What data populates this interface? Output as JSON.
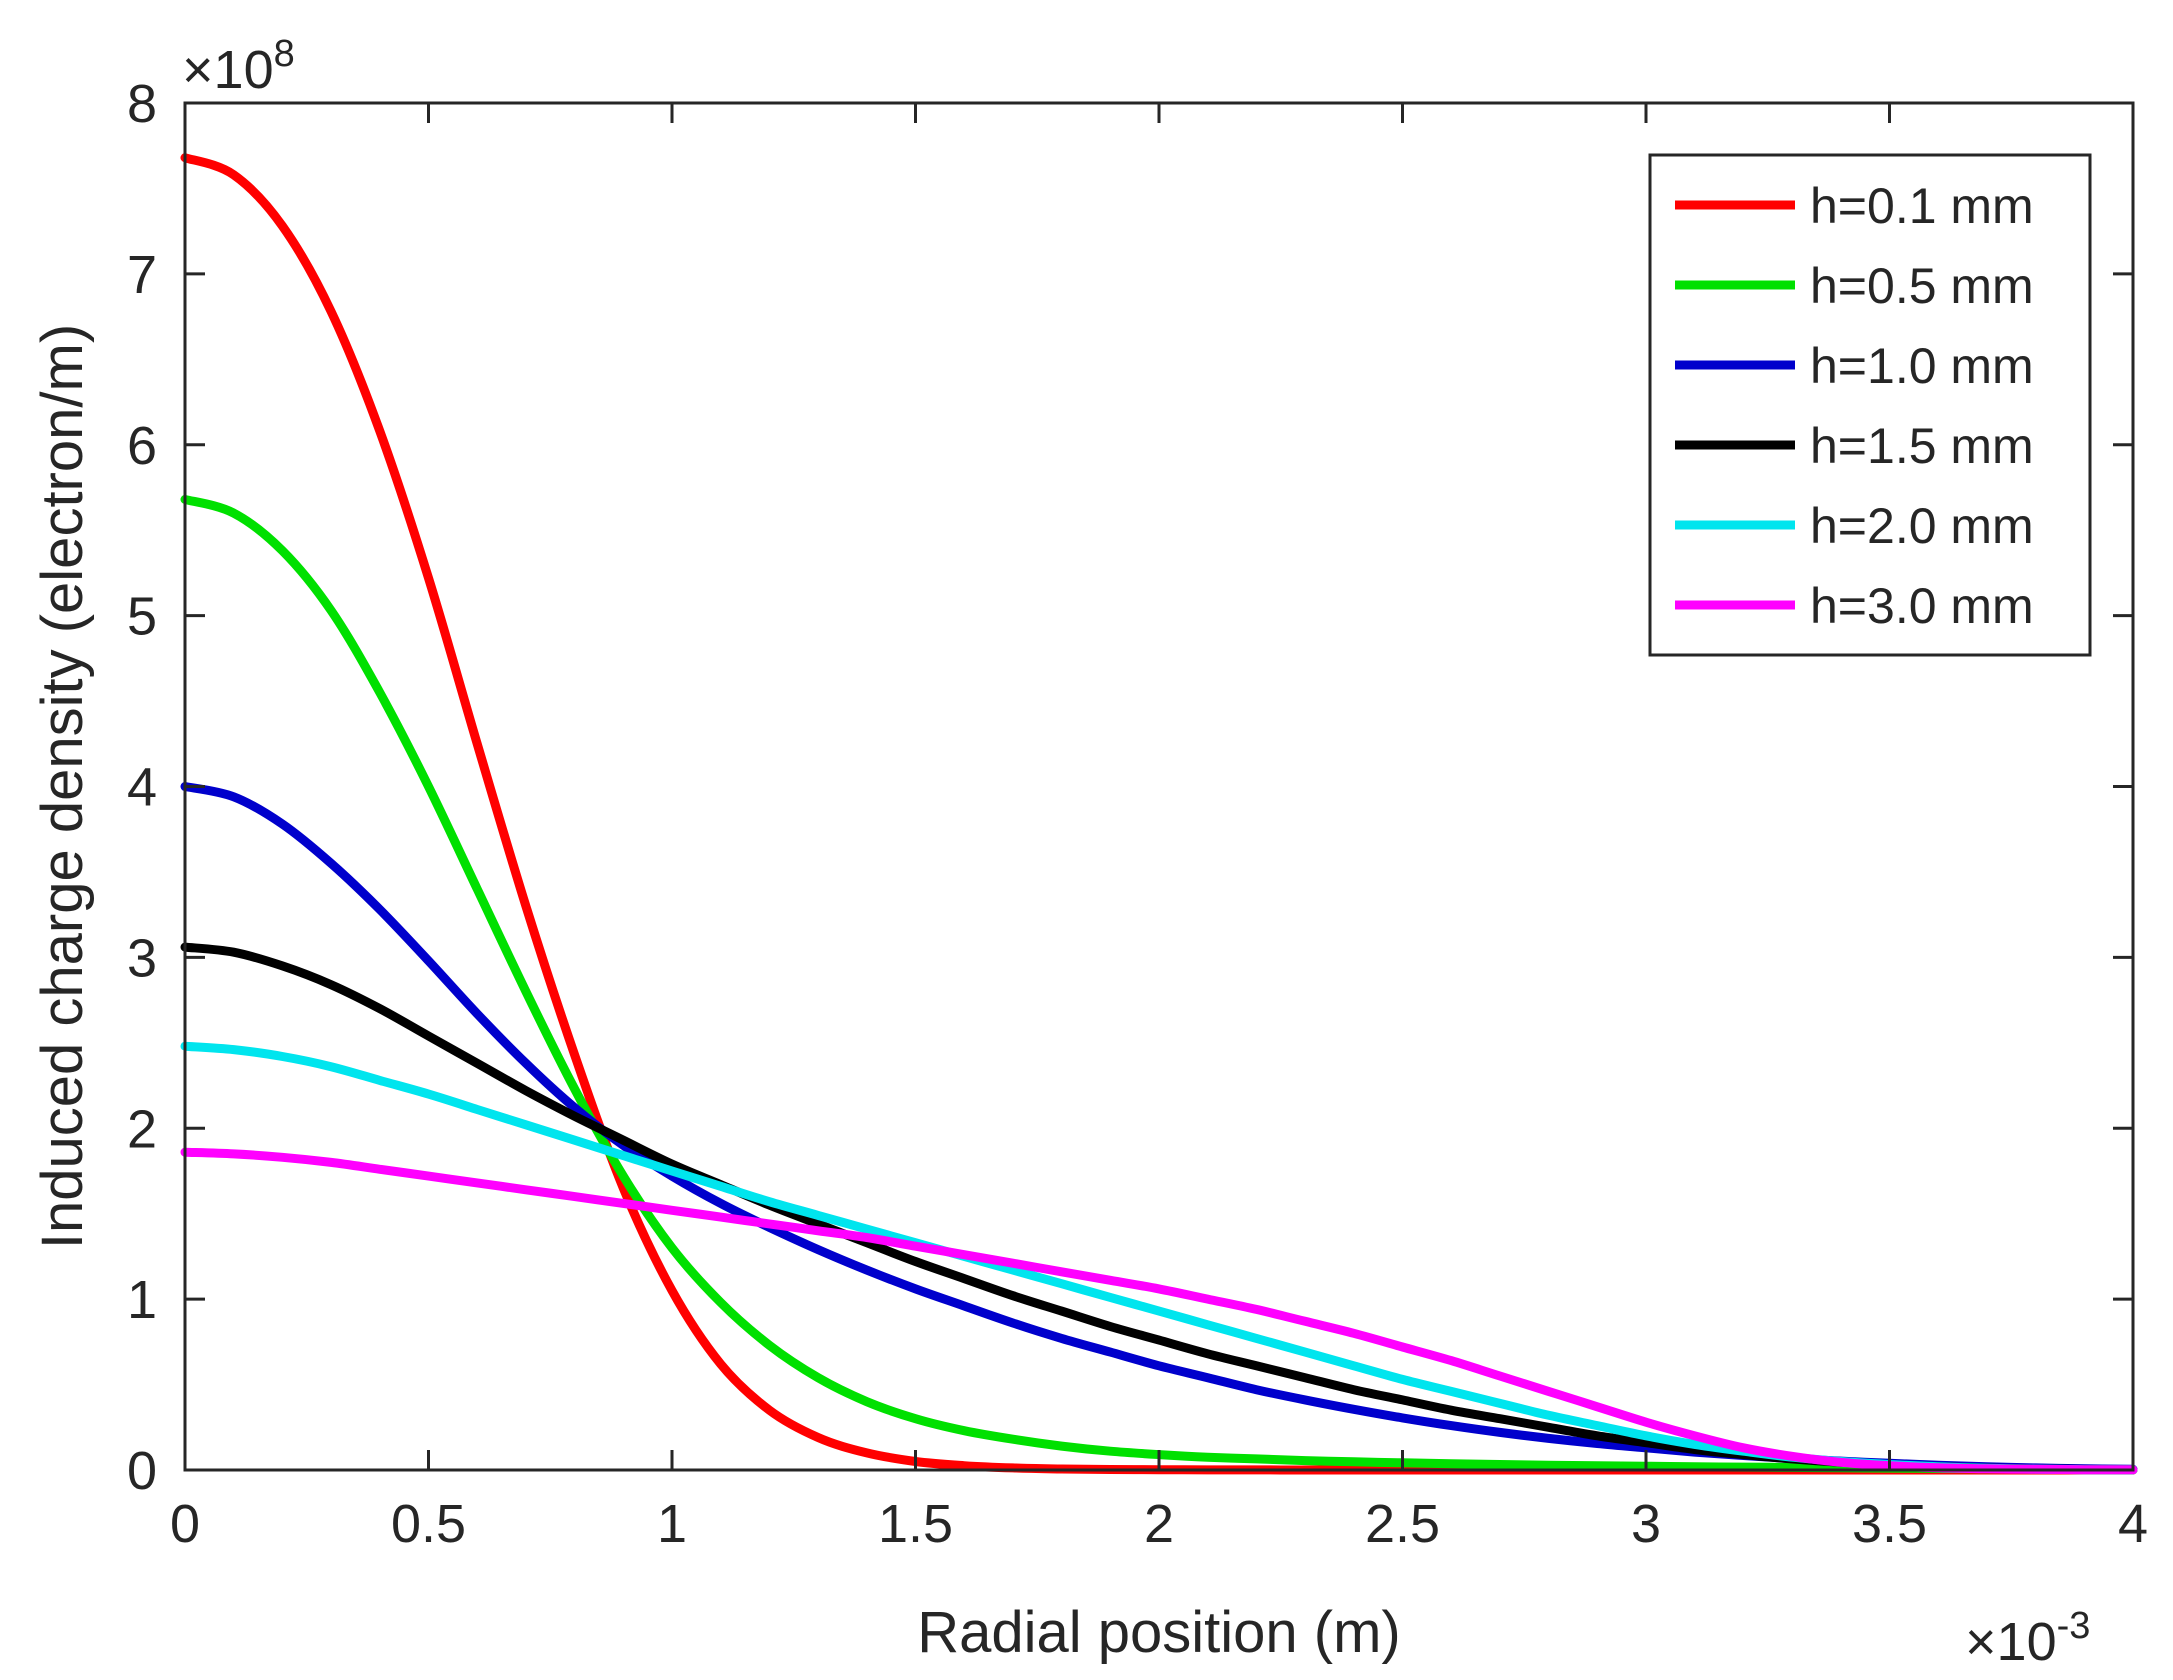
{
  "chart_data": {
    "type": "line",
    "title": "",
    "xlabel": "Radial position (m)",
    "ylabel": "Induced charge density (electron/m)",
    "x_multiplier": {
      "base": "×10",
      "exp": "-3"
    },
    "y_multiplier": {
      "base": "×10",
      "exp": "8"
    },
    "xlim": [
      0,
      4
    ],
    "ylim": [
      0,
      8
    ],
    "x_ticks": [
      0,
      0.5,
      1,
      1.5,
      2,
      2.5,
      3,
      3.5,
      4
    ],
    "x_tick_labels": [
      "0",
      "0.5",
      "1",
      "1.5",
      "2",
      "2.5",
      "3",
      "3.5",
      "4"
    ],
    "y_ticks": [
      0,
      1,
      2,
      3,
      4,
      5,
      6,
      7,
      8
    ],
    "y_tick_labels": [
      "0",
      "1",
      "2",
      "3",
      "4",
      "5",
      "6",
      "7",
      "8"
    ],
    "grid": false,
    "legend_position": "top-right",
    "x": [
      0,
      0.1,
      0.2,
      0.3,
      0.4,
      0.5,
      0.6,
      0.7,
      0.8,
      0.9,
      1.0,
      1.1,
      1.2,
      1.3,
      1.4,
      1.5,
      1.6,
      1.7,
      1.8,
      1.9,
      2.0,
      2.1,
      2.2,
      2.3,
      2.4,
      2.5,
      2.6,
      2.7,
      2.8,
      2.9,
      3.0,
      3.1,
      3.2,
      3.3,
      3.4,
      3.5,
      3.6,
      3.7,
      3.8,
      3.9,
      4.0
    ],
    "series": [
      {
        "name": "h=0.1 mm",
        "color": "#ff0000",
        "values": [
          7.68,
          7.58,
          7.28,
          6.78,
          6.08,
          5.22,
          4.25,
          3.3,
          2.43,
          1.65,
          1.05,
          0.62,
          0.35,
          0.19,
          0.1,
          0.05,
          0.025,
          0.012,
          0.006,
          0.003,
          0.0015,
          0.0008,
          0.0004,
          0.0002,
          0.0001,
          0.0001,
          0,
          0,
          0,
          0,
          0,
          0,
          0,
          0,
          0,
          0,
          0,
          0,
          0,
          0,
          0
        ]
      },
      {
        "name": "h=0.5 mm",
        "color": "#00e000",
        "values": [
          5.68,
          5.6,
          5.38,
          5.03,
          4.55,
          4.0,
          3.4,
          2.8,
          2.23,
          1.72,
          1.3,
          0.98,
          0.73,
          0.54,
          0.4,
          0.3,
          0.23,
          0.18,
          0.14,
          0.11,
          0.09,
          0.075,
          0.065,
          0.055,
          0.048,
          0.042,
          0.037,
          0.032,
          0.028,
          0.025,
          0.022,
          0.019,
          0.017,
          0.015,
          0.013,
          0.011,
          0.009,
          0.007,
          0.005,
          0.003,
          0.002
        ]
      },
      {
        "name": "h=1.0 mm",
        "color": "#0000cc",
        "values": [
          4.0,
          3.94,
          3.78,
          3.55,
          3.28,
          2.98,
          2.67,
          2.38,
          2.12,
          1.9,
          1.72,
          1.56,
          1.42,
          1.29,
          1.17,
          1.06,
          0.96,
          0.86,
          0.77,
          0.69,
          0.61,
          0.54,
          0.47,
          0.41,
          0.355,
          0.305,
          0.26,
          0.22,
          0.185,
          0.155,
          0.13,
          0.105,
          0.085,
          0.067,
          0.052,
          0.039,
          0.028,
          0.019,
          0.012,
          0.007,
          0.004
        ]
      },
      {
        "name": "h=1.5 mm",
        "color": "#000000",
        "values": [
          3.06,
          3.03,
          2.95,
          2.84,
          2.7,
          2.54,
          2.38,
          2.22,
          2.07,
          1.93,
          1.79,
          1.67,
          1.55,
          1.44,
          1.33,
          1.22,
          1.12,
          1.02,
          0.93,
          0.84,
          0.76,
          0.68,
          0.61,
          0.54,
          0.47,
          0.41,
          0.35,
          0.3,
          0.25,
          0.2,
          0.16,
          0.12,
          0.09,
          0.065,
          0.045,
          0.03,
          0.019,
          0.011,
          0.006,
          0.003,
          0.001
        ]
      },
      {
        "name": "h=2.0 mm",
        "color": "#00e5ee",
        "values": [
          2.48,
          2.46,
          2.42,
          2.36,
          2.28,
          2.2,
          2.11,
          2.02,
          1.93,
          1.84,
          1.75,
          1.66,
          1.57,
          1.49,
          1.41,
          1.33,
          1.25,
          1.17,
          1.09,
          1.01,
          0.93,
          0.85,
          0.77,
          0.69,
          0.61,
          0.53,
          0.46,
          0.39,
          0.32,
          0.26,
          0.2,
          0.15,
          0.11,
          0.075,
          0.05,
          0.032,
          0.019,
          0.01,
          0.005,
          0.002,
          0.001
        ]
      },
      {
        "name": "h=3.0 mm",
        "color": "#ff00ff",
        "values": [
          1.86,
          1.85,
          1.83,
          1.8,
          1.76,
          1.72,
          1.68,
          1.64,
          1.6,
          1.56,
          1.52,
          1.48,
          1.44,
          1.4,
          1.36,
          1.31,
          1.26,
          1.21,
          1.16,
          1.11,
          1.06,
          1.0,
          0.94,
          0.87,
          0.8,
          0.72,
          0.64,
          0.55,
          0.46,
          0.37,
          0.28,
          0.2,
          0.13,
          0.08,
          0.045,
          0.025,
          0.013,
          0.007,
          0.004,
          0.002,
          0.001
        ]
      }
    ]
  }
}
